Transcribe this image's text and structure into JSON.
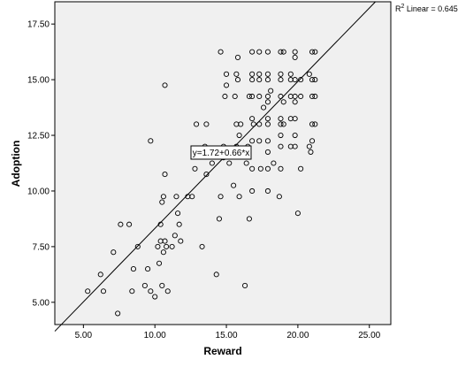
{
  "chart_data": {
    "type": "scatter",
    "xlabel": "Reward",
    "ylabel": "Adoption",
    "xlim": [
      3.0,
      26.5
    ],
    "ylim": [
      4.0,
      18.5
    ],
    "x_ticks": [
      "5.00",
      "10.00",
      "15.00",
      "20.00",
      "25.00"
    ],
    "x_tick_values": [
      5,
      10,
      15,
      20,
      25
    ],
    "y_ticks": [
      "5.00",
      "7.50",
      "10.00",
      "12.50",
      "15.00",
      "17.50"
    ],
    "y_tick_values": [
      5,
      7.5,
      10,
      12.5,
      15,
      17.5
    ],
    "grid": false,
    "fit_line": {
      "intercept": 1.72,
      "slope": 0.66
    },
    "r2_legend": {
      "prefix": "R",
      "superscript": "2",
      "suffix": " Linear = 0.645"
    },
    "equation_label": "y=1.72+0.66*x",
    "colors": {
      "plot_background": "#f0f0f0",
      "marker": "#000000",
      "fit_line": "#000000",
      "page": "#ffffff"
    },
    "points": [
      [
        5.3,
        5.5
      ],
      [
        6.2,
        6.25
      ],
      [
        6.4,
        5.5
      ],
      [
        7.1,
        7.25
      ],
      [
        7.4,
        4.5
      ],
      [
        7.6,
        8.5
      ],
      [
        8.2,
        8.5
      ],
      [
        8.4,
        5.5
      ],
      [
        8.5,
        6.5
      ],
      [
        8.8,
        7.5
      ],
      [
        9.3,
        5.75
      ],
      [
        9.5,
        6.5
      ],
      [
        9.7,
        5.5
      ],
      [
        9.7,
        12.25
      ],
      [
        10.0,
        5.25
      ],
      [
        10.2,
        7.5
      ],
      [
        10.3,
        6.75
      ],
      [
        10.4,
        7.75
      ],
      [
        10.4,
        8.5
      ],
      [
        10.5,
        9.5
      ],
      [
        10.5,
        5.75
      ],
      [
        10.6,
        7.25
      ],
      [
        10.6,
        9.75
      ],
      [
        10.7,
        7.75
      ],
      [
        10.7,
        10.75
      ],
      [
        10.7,
        14.75
      ],
      [
        10.8,
        7.5
      ],
      [
        10.9,
        5.5
      ],
      [
        11.2,
        7.5
      ],
      [
        11.4,
        8.0
      ],
      [
        11.5,
        9.75
      ],
      [
        11.6,
        9.0
      ],
      [
        11.7,
        8.5
      ],
      [
        11.8,
        7.75
      ],
      [
        12.3,
        9.75
      ],
      [
        12.6,
        9.75
      ],
      [
        12.8,
        11.0
      ],
      [
        12.9,
        13.0
      ],
      [
        13.3,
        7.5
      ],
      [
        13.5,
        12.0
      ],
      [
        13.6,
        13.0
      ],
      [
        13.6,
        10.75
      ],
      [
        14.0,
        11.25
      ],
      [
        14.2,
        11.75
      ],
      [
        14.3,
        6.25
      ],
      [
        14.5,
        8.75
      ],
      [
        14.6,
        9.75
      ],
      [
        14.6,
        16.25
      ],
      [
        14.8,
        11.5
      ],
      [
        14.8,
        12.0
      ],
      [
        14.9,
        14.25
      ],
      [
        15.0,
        15.25
      ],
      [
        15.0,
        14.75
      ],
      [
        15.2,
        11.25
      ],
      [
        15.3,
        11.75
      ],
      [
        15.5,
        10.25
      ],
      [
        15.6,
        14.25
      ],
      [
        15.7,
        15.25
      ],
      [
        15.7,
        13.0
      ],
      [
        15.7,
        12.0
      ],
      [
        15.8,
        16.0
      ],
      [
        15.8,
        15.0
      ],
      [
        15.9,
        9.75
      ],
      [
        15.9,
        12.5
      ],
      [
        16.0,
        13.0
      ],
      [
        16.3,
        5.75
      ],
      [
        16.4,
        11.25
      ],
      [
        16.5,
        12.0
      ],
      [
        16.6,
        14.25
      ],
      [
        16.6,
        8.75
      ],
      [
        16.8,
        16.25
      ],
      [
        16.8,
        15.25
      ],
      [
        16.8,
        15.0
      ],
      [
        16.8,
        14.25
      ],
      [
        16.8,
        13.25
      ],
      [
        16.8,
        12.25
      ],
      [
        16.8,
        11.0
      ],
      [
        16.8,
        10.0
      ],
      [
        16.9,
        13.0
      ],
      [
        17.3,
        16.25
      ],
      [
        17.3,
        15.25
      ],
      [
        17.3,
        15.0
      ],
      [
        17.3,
        14.25
      ],
      [
        17.3,
        13.0
      ],
      [
        17.3,
        12.25
      ],
      [
        17.4,
        11.0
      ],
      [
        17.6,
        13.75
      ],
      [
        17.9,
        16.25
      ],
      [
        17.9,
        15.25
      ],
      [
        17.9,
        15.0
      ],
      [
        17.9,
        14.25
      ],
      [
        17.9,
        14.0
      ],
      [
        17.9,
        13.25
      ],
      [
        17.9,
        13.0
      ],
      [
        17.9,
        12.25
      ],
      [
        17.9,
        11.75
      ],
      [
        17.9,
        11.0
      ],
      [
        17.9,
        10.0
      ],
      [
        18.1,
        14.5
      ],
      [
        18.3,
        11.25
      ],
      [
        18.7,
        9.75
      ],
      [
        18.8,
        16.25
      ],
      [
        18.8,
        15.25
      ],
      [
        18.8,
        15.0
      ],
      [
        18.8,
        14.25
      ],
      [
        18.8,
        13.25
      ],
      [
        18.8,
        13.0
      ],
      [
        18.8,
        12.5
      ],
      [
        18.8,
        12.0
      ],
      [
        18.8,
        11.0
      ],
      [
        19.0,
        16.25
      ],
      [
        19.0,
        14.0
      ],
      [
        19.0,
        13.0
      ],
      [
        19.5,
        15.25
      ],
      [
        19.5,
        15.0
      ],
      [
        19.5,
        14.25
      ],
      [
        19.5,
        13.25
      ],
      [
        19.5,
        12.0
      ],
      [
        19.8,
        16.25
      ],
      [
        19.8,
        16.0
      ],
      [
        19.8,
        15.0
      ],
      [
        19.8,
        14.25
      ],
      [
        19.8,
        14.0
      ],
      [
        19.8,
        13.25
      ],
      [
        19.8,
        12.5
      ],
      [
        19.8,
        12.0
      ],
      [
        20.0,
        9.0
      ],
      [
        20.2,
        14.25
      ],
      [
        20.2,
        15.0
      ],
      [
        20.2,
        11.0
      ],
      [
        20.8,
        15.25
      ],
      [
        20.8,
        12.0
      ],
      [
        20.9,
        11.75
      ],
      [
        21.0,
        16.25
      ],
      [
        21.0,
        15.0
      ],
      [
        21.0,
        14.25
      ],
      [
        21.0,
        13.0
      ],
      [
        21.0,
        12.25
      ],
      [
        21.2,
        16.25
      ],
      [
        21.2,
        15.0
      ],
      [
        21.2,
        14.25
      ],
      [
        21.2,
        13.0
      ]
    ]
  }
}
